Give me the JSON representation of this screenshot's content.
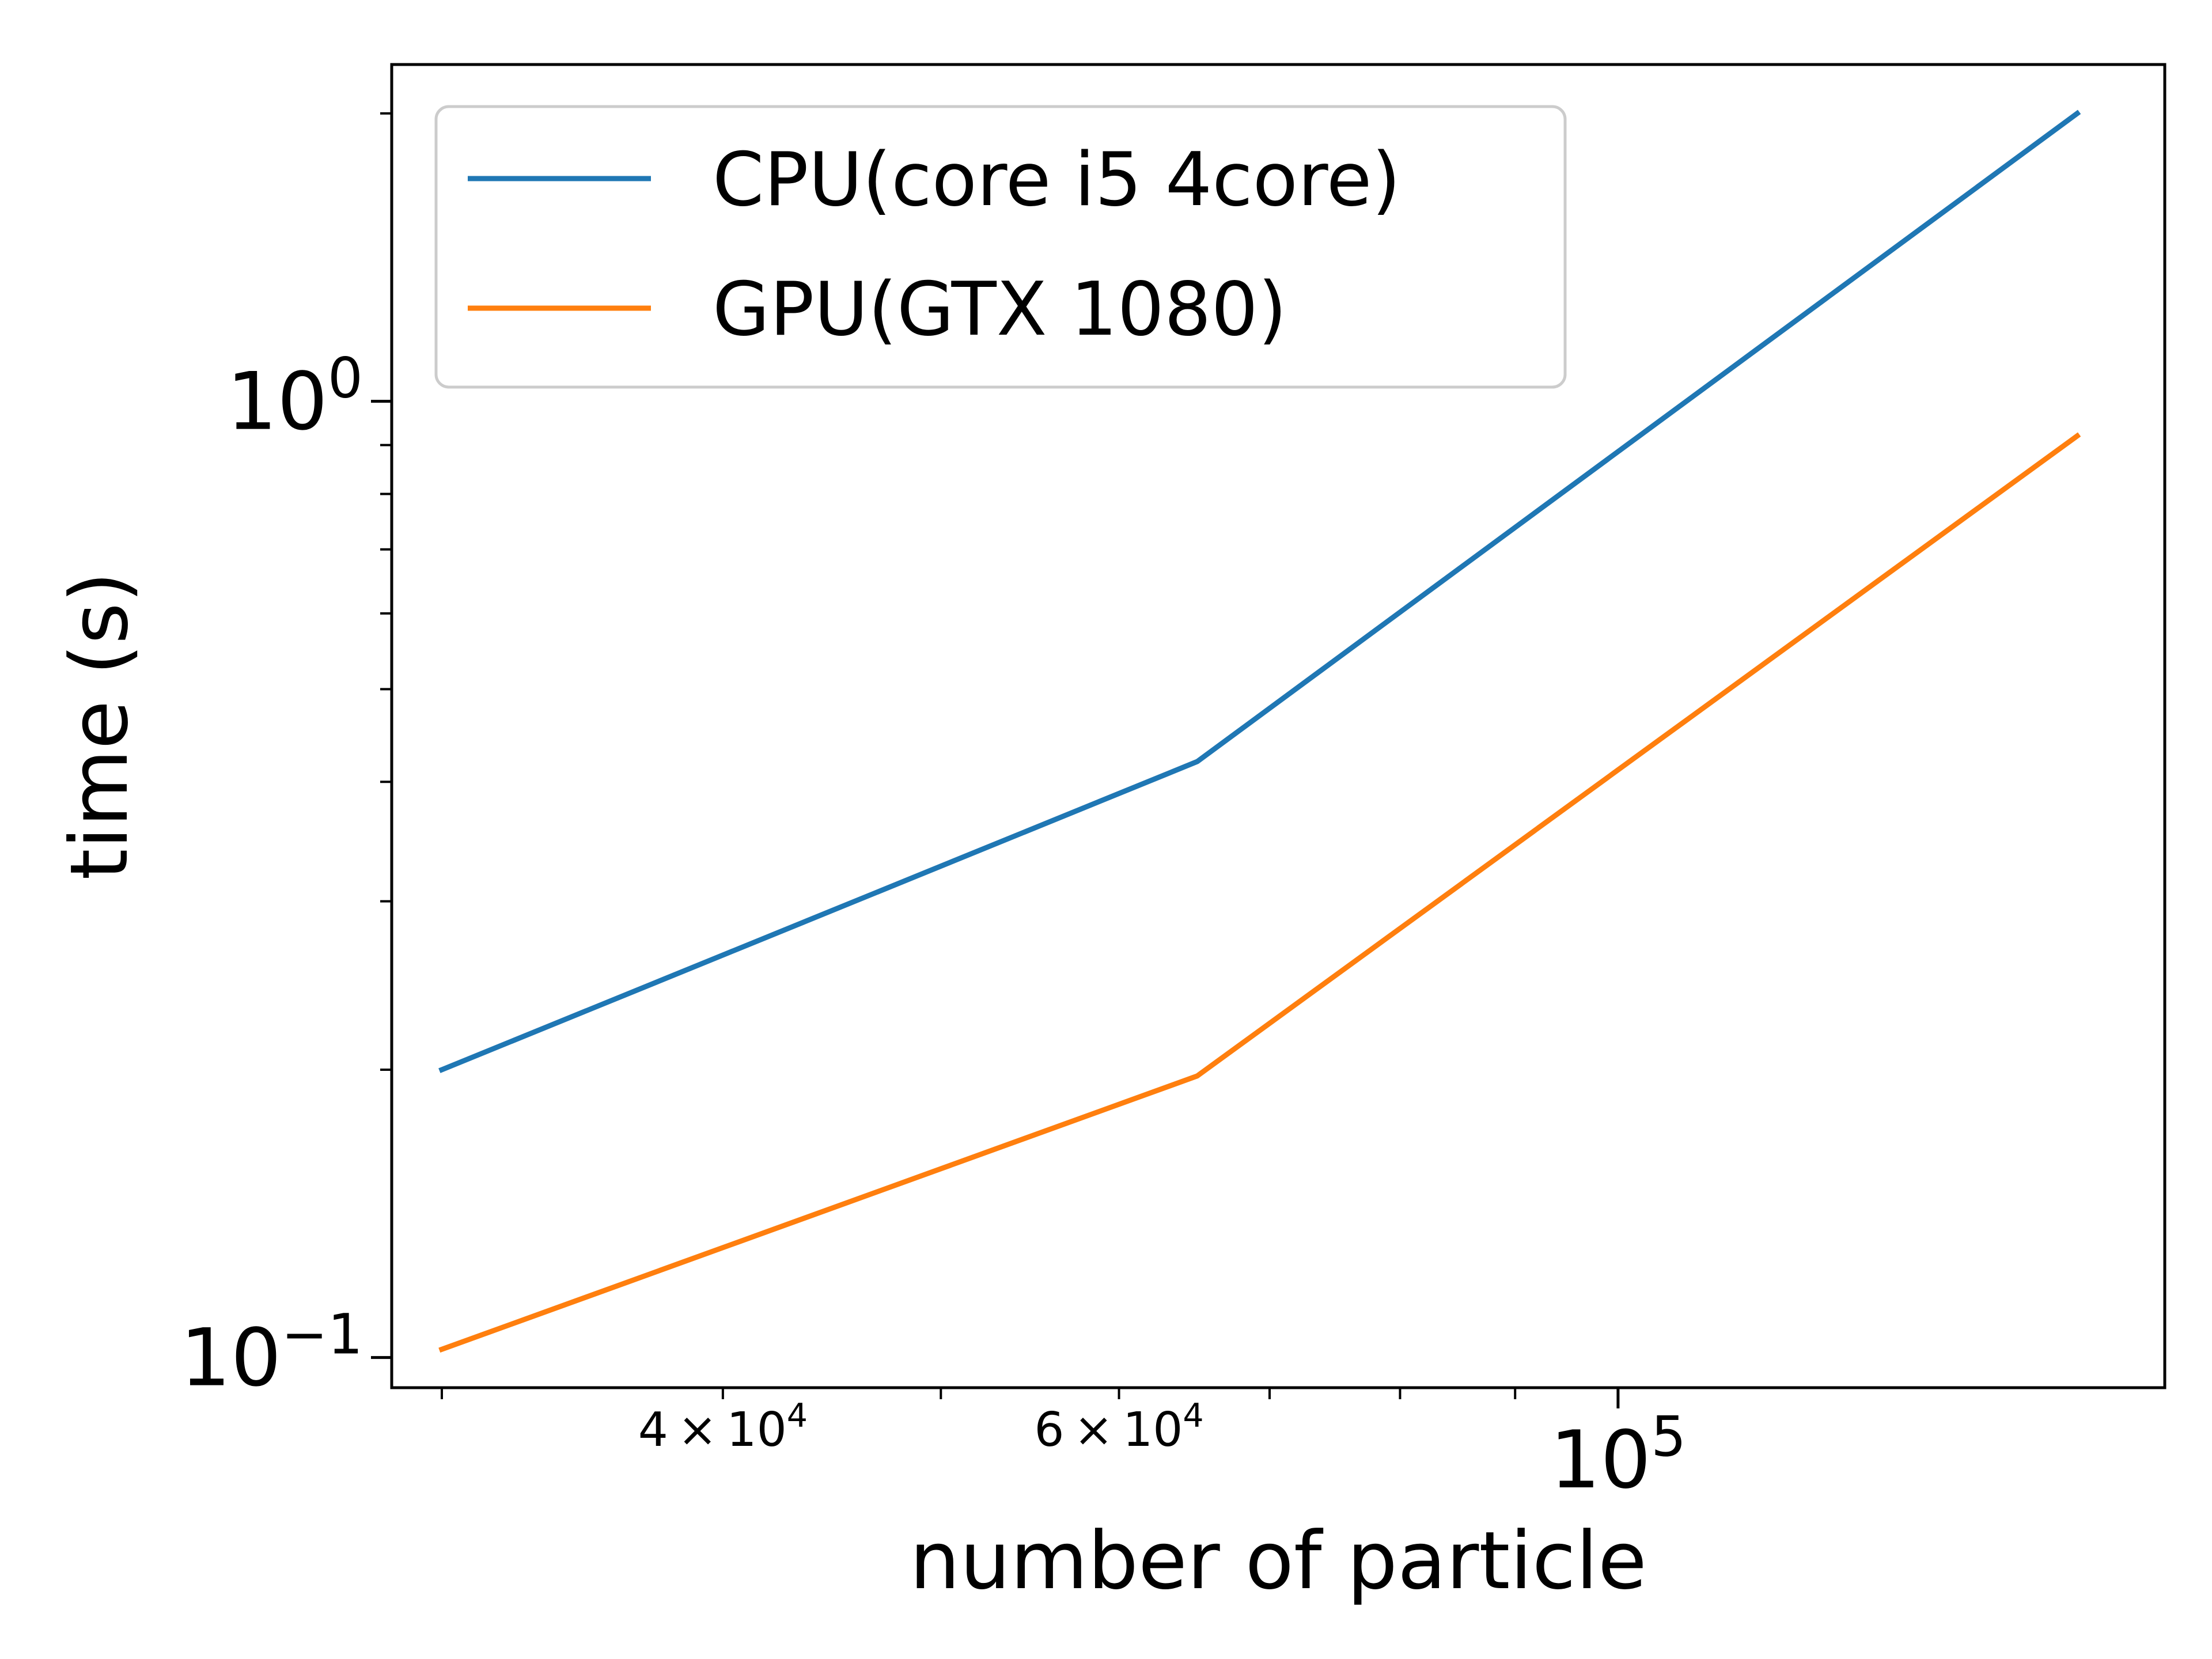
{
  "chart_data": {
    "type": "line",
    "xlabel": "number of particle",
    "ylabel": "time (s)",
    "x_scale": "log",
    "y_scale": "log",
    "xlim": [
      28500,
      175000
    ],
    "ylim": [
      0.093,
      2.25
    ],
    "grid": false,
    "legend_position": "upper-left",
    "x_ticks": [
      {
        "value": 40000,
        "mantissa": "4",
        "base": "10",
        "exp": "4",
        "size": "minor"
      },
      {
        "value": 60000,
        "mantissa": "6",
        "base": "10",
        "exp": "4",
        "size": "minor"
      },
      {
        "value": 100000,
        "mantissa": "",
        "base": "10",
        "exp": "5",
        "size": "major"
      }
    ],
    "y_ticks": [
      {
        "value": 1.0,
        "base": "10",
        "exp": "0"
      },
      {
        "value": 0.1,
        "base": "10",
        "exp": "−1"
      }
    ],
    "series": [
      {
        "name": "CPU(core i5 4core)",
        "color": "#1f77b4",
        "x": [
          30000,
          65000,
          160000
        ],
        "y": [
          0.2,
          0.42,
          2.0
        ]
      },
      {
        "name": "GPU(GTX 1080)",
        "color": "#ff7f0e",
        "x": [
          30000,
          65000,
          160000
        ],
        "y": [
          0.102,
          0.197,
          0.92
        ]
      }
    ]
  }
}
